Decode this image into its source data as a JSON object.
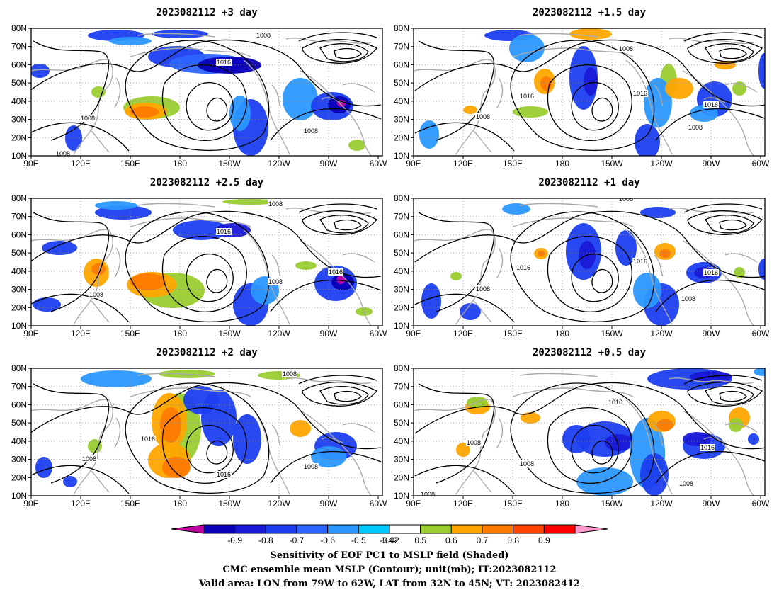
{
  "panels": [
    {
      "title": "2023082112 +3 day"
    },
    {
      "title": "2023082112 +1.5 day"
    },
    {
      "title": "2023082112 +2.5 day"
    },
    {
      "title": "2023082112 +1 day"
    },
    {
      "title": "2023082112 +2 day"
    },
    {
      "title": "2023082112 +0.5 day"
    }
  ],
  "axes": {
    "lon_ticks": [
      "90E",
      "120E",
      "150E",
      "180",
      "150W",
      "120W",
      "90W",
      "60W"
    ],
    "lat_ticks": [
      "80N",
      "70N",
      "60N",
      "50N",
      "40N",
      "30N",
      "20N",
      "10N"
    ]
  },
  "colorbar": {
    "labels": [
      "-0.9",
      "-0.8",
      "-0.7",
      "-0.6",
      "-0.5",
      "-0.42",
      "0.42",
      "0.5",
      "0.6",
      "0.7",
      "0.8",
      "0.9"
    ],
    "colors": [
      "#0a00b8",
      "#1a19d8",
      "#1c3ef0",
      "#2c64ff",
      "#2a98ff",
      "#00c8ff",
      "#ffffff",
      "#9acd32",
      "#ffa500",
      "#ff7a00",
      "#ff4500",
      "#ff0000"
    ],
    "low_end_color": "#c000a0",
    "high_end_color": "#ff99cc"
  },
  "contour_labels": [
    "1008",
    "1016"
  ],
  "caption": {
    "line1": "Sensitivity of EOF PC1 to MSLP field (Shaded)",
    "line2": "CMC ensemble mean MSLP (Contour); unit(mb); IT:2023082112",
    "line3": "Valid area: LON from 79W to 62W, LAT from 32N to 45N; VT: 2023082412"
  },
  "colors": {
    "coast": "#aaaaaa",
    "contour": "#000000",
    "grid": "#888888"
  }
}
